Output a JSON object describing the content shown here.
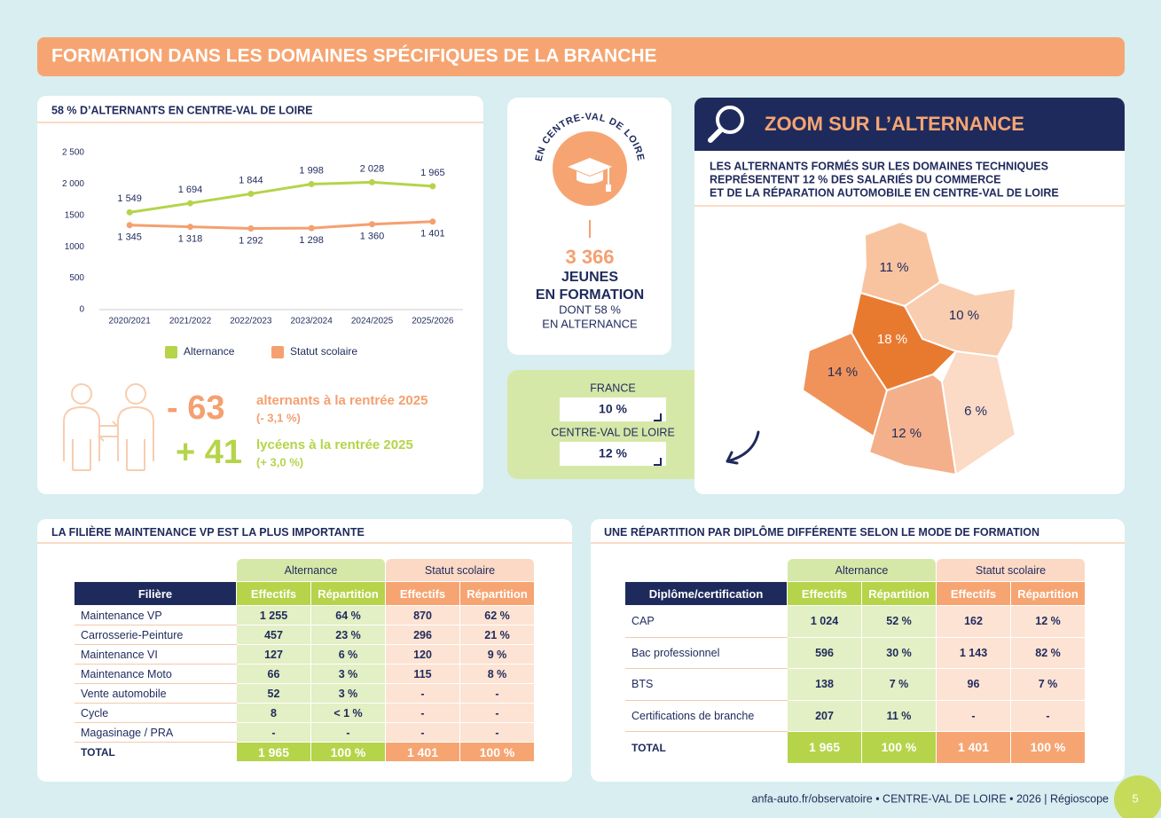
{
  "header": {
    "title": "FORMATION DANS LES DOMAINES SPÉCIFIQUES DE LA BRANCHE"
  },
  "chart_data": {
    "type": "line",
    "title": "58 % D’ALTERNANTS EN CENTRE-VAL DE LOIRE",
    "categories": [
      "2020/2021",
      "2021/2022",
      "2022/2023",
      "2023/2024",
      "2024/2025",
      "2025/2026"
    ],
    "series": [
      {
        "name": "Alternance",
        "color": "#b5d44a",
        "values": [
          1549,
          1694,
          1844,
          1998,
          2028,
          1965
        ],
        "value_labels": [
          "1 549",
          "1 694",
          "1 844",
          "1 998",
          "2 028",
          "1 965"
        ]
      },
      {
        "name": "Statut scolaire",
        "color": "#f4a070",
        "values": [
          1345,
          1318,
          1292,
          1298,
          1360,
          1401
        ],
        "value_labels": [
          "1 345",
          "1 318",
          "1 292",
          "1 298",
          "1 360",
          "1 401"
        ]
      }
    ],
    "ylim": [
      0,
      2500
    ],
    "yticks": [
      0,
      500,
      1000,
      1500,
      {
        "value": 2000,
        "label": "2 000"
      },
      {
        "value": 2500,
        "label": "2 500"
      }
    ],
    "grid": false,
    "legend": "bottom"
  },
  "stats": [
    {
      "value": "- 63",
      "label": "alternants à la rentrée 2025",
      "detail": "(- 3,1 %)",
      "color": "#f4a070"
    },
    {
      "value": "+ 41",
      "label": "lycéens à la rentrée 2025",
      "detail": "(+ 3,0 %)",
      "color": "#b5d44a"
    }
  ],
  "badge": {
    "arc": "EN CENTRE-VAL DE LOIRE",
    "number": "3 366",
    "line1": "JEUNES",
    "line2": "EN FORMATION",
    "line3": "DONT 58 %",
    "line4": "EN ALTERNANCE"
  },
  "comparison": [
    {
      "label": "FRANCE",
      "value": "10 %"
    },
    {
      "label": "CENTRE-VAL DE LOIRE",
      "value": "12 %"
    }
  ],
  "zoom": {
    "title": "ZOOM SUR L’ALTERNANCE",
    "subtitle": [
      "LES ALTERNANTS FORMÉS SUR LES DOMAINES TECHNIQUES",
      "REPRÉSENTENT 12 % DES SALARIÉS DU COMMERCE",
      "ET DE LA RÉPARATION AUTOMOBILE EN CENTRE-VAL DE LOIRE"
    ],
    "map_labels": [
      "11 %",
      "10 %",
      "18 %",
      "14 %",
      "6 %",
      "12 %"
    ]
  },
  "table1": {
    "title": "LA FILIÈRE MAINTENANCE VP EST LA PLUS IMPORTANTE",
    "groups": [
      "Alternance",
      "Statut scolaire"
    ],
    "columns": [
      "Filière",
      "Effectifs",
      "Répartition",
      "Effectifs",
      "Répartition"
    ],
    "rows": [
      [
        "Maintenance VP",
        "1 255",
        "64 %",
        "870",
        "62 %"
      ],
      [
        "Carrosserie-Peinture",
        "457",
        "23 %",
        "296",
        "21 %"
      ],
      [
        "Maintenance VI",
        "127",
        "6 %",
        "120",
        "9 %"
      ],
      [
        "Maintenance Moto",
        "66",
        "3 %",
        "115",
        "8 %"
      ],
      [
        "Vente automobile",
        "52",
        "3 %",
        "-",
        "-"
      ],
      [
        "Cycle",
        "8",
        "< 1 %",
        "-",
        "-"
      ],
      [
        "Magasinage / PRA",
        "-",
        "-",
        "-",
        "-"
      ]
    ],
    "total": [
      "TOTAL",
      "1 965",
      "100 %",
      "1 401",
      "100 %"
    ]
  },
  "table2": {
    "title": "UNE RÉPARTITION PAR DIPLÔME DIFFÉRENTE SELON LE MODE DE FORMATION",
    "groups": [
      "Alternance",
      "Statut scolaire"
    ],
    "columns": [
      "Diplôme/certification",
      "Effectifs",
      "Répartition",
      "Effectifs",
      "Répartition"
    ],
    "rows": [
      [
        "CAP",
        "1 024",
        "52 %",
        "162",
        "12 %"
      ],
      [
        "Bac professionnel",
        "596",
        "30 %",
        "1 143",
        "82 %"
      ],
      [
        "BTS",
        "138",
        "7 %",
        "96",
        "7 %"
      ],
      [
        "Certifications de branche",
        "207",
        "11 %",
        "-",
        "-"
      ]
    ],
    "total": [
      "TOTAL",
      "1 965",
      "100 %",
      "1 401",
      "100 %"
    ]
  },
  "footer": {
    "text": "anfa-auto.fr/observatoire  •  CENTRE-VAL DE LOIRE  •  2026 | Régioscope",
    "page": "5"
  }
}
